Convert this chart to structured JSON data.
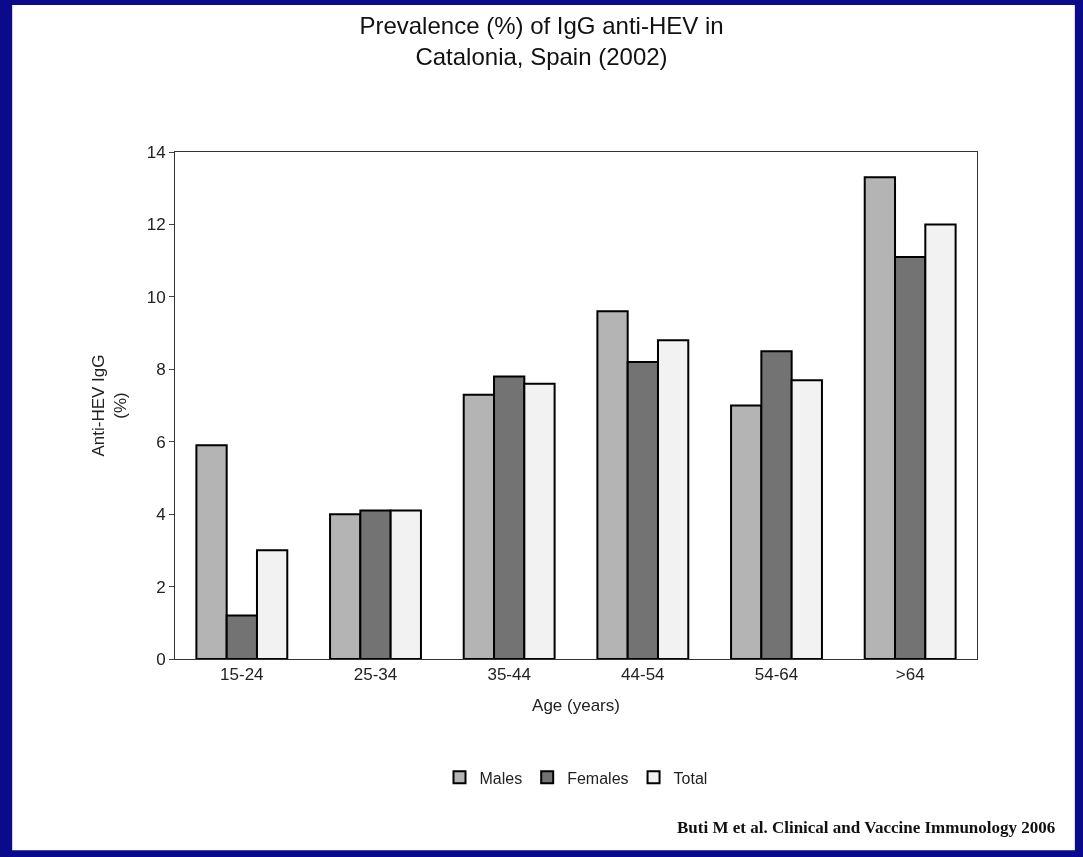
{
  "chart_data": {
    "type": "bar",
    "title": "Prevalence (%) of IgG anti-HEV in\nCatalonia, Spain (2002)",
    "xlabel": "Age (years)",
    "ylabel": "Anti-HEV IgG\n(%)",
    "categories": [
      "15-24",
      "25-34",
      "35-44",
      "44-54",
      "54-64",
      ">64"
    ],
    "series": [
      {
        "name": "Males",
        "color": "#b4b4b4",
        "values": [
          5.9,
          4.0,
          7.3,
          9.6,
          7.0,
          13.3
        ]
      },
      {
        "name": "Females",
        "color": "#737373",
        "values": [
          1.2,
          4.1,
          7.8,
          8.2,
          8.5,
          11.1
        ]
      },
      {
        "name": "Total",
        "color": "#f2f2f2",
        "values": [
          3.0,
          4.1,
          7.6,
          8.8,
          7.7,
          12.0
        ]
      }
    ],
    "ylim": [
      0,
      14
    ],
    "yticks": [
      0,
      2,
      4,
      6,
      8,
      10,
      12,
      14
    ],
    "legend": "bottom",
    "grid": false,
    "annotations": [
      "Buti M et al. Clinical and Vaccine Immunology 2006"
    ]
  }
}
